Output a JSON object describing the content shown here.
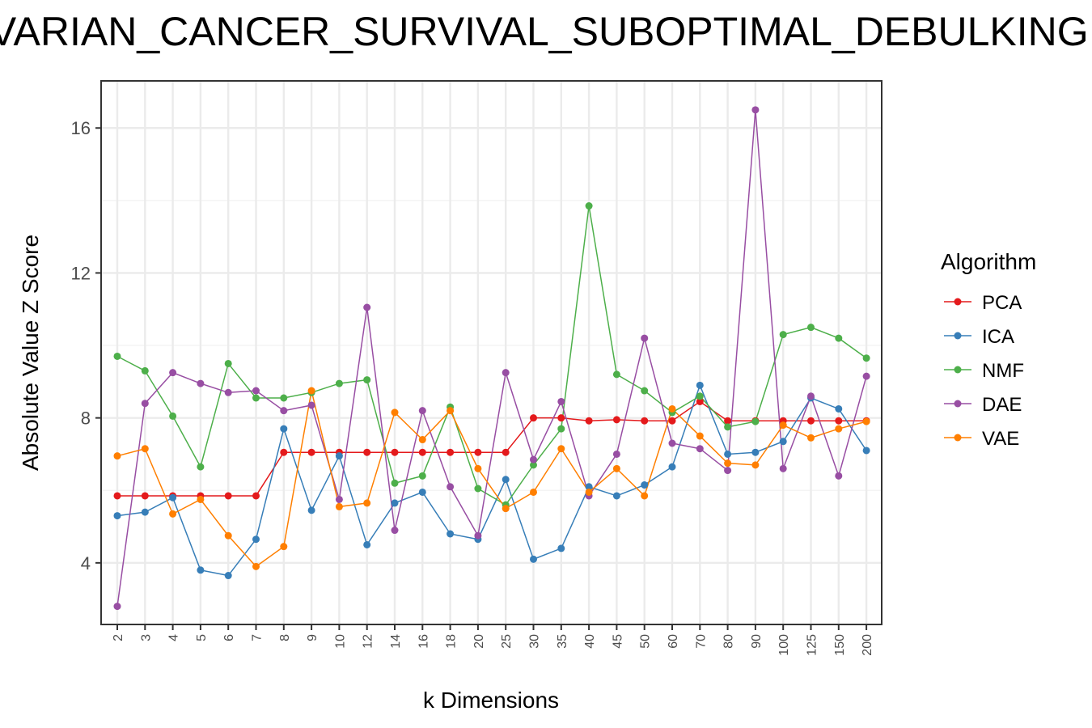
{
  "chart_data": {
    "type": "line",
    "title": "OVARIAN_CANCER_SURVIVAL_SUBOPTIMAL_DEBULKING",
    "xlabel": "k Dimensions",
    "ylabel": "Absolute Value Z Score",
    "categories": [
      "2",
      "3",
      "4",
      "5",
      "6",
      "7",
      "8",
      "9",
      "10",
      "12",
      "14",
      "16",
      "18",
      "20",
      "25",
      "30",
      "35",
      "40",
      "45",
      "50",
      "60",
      "70",
      "80",
      "90",
      "100",
      "125",
      "150",
      "200"
    ],
    "ylim": [
      2.3,
      17.3
    ],
    "yticks": [
      4,
      8,
      12,
      16
    ],
    "grid": true,
    "legend_title": "Algorithm",
    "legend_position": "right",
    "series": [
      {
        "name": "PCA",
        "color": "#E41A1C",
        "values": [
          5.85,
          5.85,
          5.85,
          5.85,
          5.85,
          5.85,
          7.05,
          7.05,
          7.05,
          7.05,
          7.05,
          7.05,
          7.05,
          7.05,
          7.05,
          8.0,
          8.0,
          7.92,
          7.95,
          7.92,
          7.92,
          8.45,
          7.92,
          7.92,
          7.92,
          7.92,
          7.92,
          7.92
        ]
      },
      {
        "name": "ICA",
        "color": "#377EB8",
        "values": [
          5.3,
          5.4,
          5.8,
          3.8,
          3.65,
          4.65,
          7.7,
          5.45,
          6.95,
          4.5,
          5.65,
          5.95,
          4.8,
          4.65,
          6.3,
          4.1,
          4.4,
          6.1,
          5.85,
          6.15,
          6.65,
          8.9,
          7.0,
          7.05,
          7.35,
          8.55,
          8.25,
          7.1
        ]
      },
      {
        "name": "NMF",
        "color": "#4DAF4A",
        "values": [
          9.7,
          9.3,
          8.05,
          6.65,
          9.5,
          8.55,
          8.55,
          8.7,
          8.95,
          9.05,
          6.2,
          6.4,
          8.3,
          6.05,
          5.6,
          6.7,
          7.7,
          13.85,
          9.2,
          8.75,
          8.15,
          8.6,
          7.75,
          7.9,
          10.3,
          10.5,
          10.2,
          9.65
        ]
      },
      {
        "name": "DAE",
        "color": "#984EA3",
        "values": [
          2.8,
          8.4,
          9.25,
          8.95,
          8.7,
          8.75,
          8.2,
          8.35,
          5.75,
          11.05,
          4.9,
          8.2,
          6.1,
          4.75,
          9.25,
          6.85,
          8.45,
          5.85,
          7.0,
          10.2,
          7.3,
          7.15,
          6.55,
          16.5,
          6.6,
          8.6,
          6.4,
          9.15
        ]
      },
      {
        "name": "VAE",
        "color": "#FF7F00",
        "values": [
          6.95,
          7.15,
          5.35,
          5.75,
          4.75,
          3.9,
          4.45,
          8.75,
          5.55,
          5.65,
          8.15,
          7.4,
          8.2,
          6.6,
          5.5,
          5.95,
          7.15,
          5.95,
          6.6,
          5.85,
          8.25,
          7.5,
          6.75,
          6.7,
          7.8,
          7.45,
          7.7,
          7.9
        ]
      }
    ]
  }
}
